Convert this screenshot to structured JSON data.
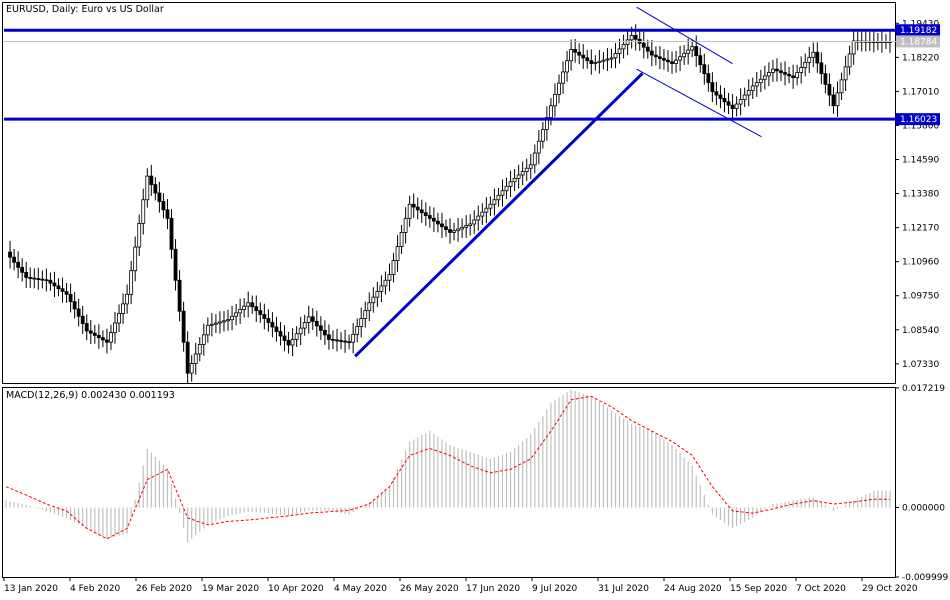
{
  "chart_data": [
    {
      "type": "candlestick",
      "title": "EURUSD, Daily:  Euro vs US Dollar",
      "yticks": [
        "1.19430",
        "1.18220",
        "1.17010",
        "1.15800",
        "1.14590",
        "1.13380",
        "1.12170",
        "1.10960",
        "1.09750",
        "1.08540",
        "1.07330"
      ],
      "ylim": [
        1.0665,
        1.2015
      ],
      "hlines": [
        {
          "value": 1.19182,
          "label": "1.19182",
          "color": "#0000cc"
        },
        {
          "value": 1.16023,
          "label": "1.16023",
          "color": "#0000cc"
        }
      ],
      "current_price": {
        "value": 1.18784,
        "label": "1.18784"
      },
      "trendlines": [
        {
          "from": [
            "2020-05-13",
            1.076
          ],
          "to": [
            "2020-08-20",
            1.1765
          ],
          "color": "#0000cc",
          "width": "thick"
        },
        {
          "from": [
            "2020-08-18",
            1.2
          ],
          "to": [
            "2020-09-20",
            1.18
          ],
          "color": "#0000cc",
          "width": "thin"
        },
        {
          "from": [
            "2020-08-18",
            1.178
          ],
          "to": [
            "2020-09-30",
            1.154
          ],
          "color": "#0000cc",
          "width": "thin"
        }
      ],
      "x": [
        "2020-01-13",
        "2020-01-20",
        "2020-01-27",
        "2020-02-03",
        "2020-02-10",
        "2020-02-17",
        "2020-02-24",
        "2020-03-02",
        "2020-03-09",
        "2020-03-16",
        "2020-03-23",
        "2020-03-30",
        "2020-04-06",
        "2020-04-13",
        "2020-04-20",
        "2020-04-27",
        "2020-05-04",
        "2020-05-11",
        "2020-05-18",
        "2020-05-25",
        "2020-06-01",
        "2020-06-08",
        "2020-06-15",
        "2020-06-22",
        "2020-06-29",
        "2020-07-06",
        "2020-07-13",
        "2020-07-20",
        "2020-07-27",
        "2020-08-03",
        "2020-08-10",
        "2020-08-17",
        "2020-08-24",
        "2020-08-31",
        "2020-09-07",
        "2020-09-14",
        "2020-09-21",
        "2020-09-28",
        "2020-10-05",
        "2020-10-12",
        "2020-10-19",
        "2020-10-26",
        "2020-11-02",
        "2020-11-09"
      ],
      "close": [
        1.113,
        1.104,
        1.103,
        1.098,
        1.085,
        1.081,
        1.098,
        1.14,
        1.125,
        1.07,
        1.087,
        1.089,
        1.095,
        1.088,
        1.08,
        1.09,
        1.082,
        1.081,
        1.095,
        1.105,
        1.13,
        1.125,
        1.12,
        1.123,
        1.13,
        1.138,
        1.144,
        1.165,
        1.185,
        1.18,
        1.182,
        1.19,
        1.183,
        1.18,
        1.186,
        1.17,
        1.164,
        1.172,
        1.178,
        1.175,
        1.184,
        1.165,
        1.188,
        1.1878
      ],
      "xtick_labels": [
        "13 Jan 2020",
        "4 Feb 2020",
        "26 Feb 2020",
        "19 Mar 2020",
        "10 Apr 2020",
        "4 May 2020",
        "26 May 2020",
        "17 Jun 2020",
        "9 Jul 2020",
        "31 Jul 2020",
        "24 Aug 2020",
        "15 Sep 2020",
        "7 Oct 2020",
        "29 Oct 2020"
      ]
    },
    {
      "type": "histogram+line",
      "title": "MACD(12,26,9) 0.002430 0.001193",
      "yticks": [
        "0.017219",
        "0.000000",
        "-0.009999"
      ],
      "ylim": [
        -0.01,
        0.0172
      ],
      "histogram": [
        0.001,
        0.0004,
        -0.0005,
        -0.0015,
        -0.003,
        -0.0045,
        -0.0038,
        0.0085,
        0.0055,
        -0.005,
        -0.0025,
        -0.0012,
        -0.0006,
        -0.0008,
        -0.0012,
        -0.0004,
        -0.0005,
        -0.001,
        0.0008,
        0.003,
        0.0095,
        0.011,
        0.009,
        0.008,
        0.007,
        0.008,
        0.0105,
        0.015,
        0.017,
        0.016,
        0.014,
        0.012,
        0.011,
        0.009,
        0.006,
        -0.001,
        -0.003,
        -0.0015,
        0.0005,
        0.001,
        0.0015,
        -0.0005,
        0.001,
        0.0024
      ],
      "signal": [
        0.003,
        0.0018,
        0.0005,
        -0.0005,
        -0.003,
        -0.0045,
        -0.003,
        0.004,
        0.0055,
        -0.0015,
        -0.0025,
        -0.002,
        -0.0018,
        -0.0015,
        -0.0012,
        -0.0008,
        -0.0006,
        -0.0004,
        0.0005,
        0.003,
        0.0075,
        0.0085,
        0.0075,
        0.006,
        0.005,
        0.0055,
        0.007,
        0.011,
        0.0155,
        0.016,
        0.0145,
        0.0125,
        0.011,
        0.0095,
        0.0075,
        0.003,
        -0.0005,
        -0.0008,
        -0.0002,
        0.0005,
        0.001,
        0.0005,
        0.0008,
        0.0012
      ],
      "histogram_color": "#c0c0c0",
      "signal_color": "#ff0000"
    }
  ]
}
